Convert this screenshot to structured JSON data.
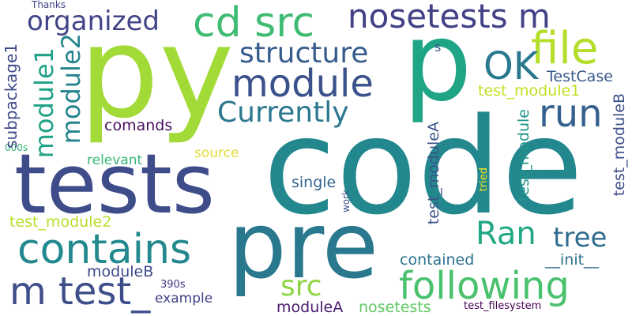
{
  "words": [
    {
      "text": "code",
      "color": "#23888e"
    },
    {
      "text": "py",
      "color": "#a2da37"
    },
    {
      "text": "p",
      "color": "#20a486"
    },
    {
      "text": "tests",
      "color": "#3e4c8a"
    },
    {
      "text": "pre",
      "color": "#29788e"
    },
    {
      "text": "cd src",
      "color": "#3fbc73"
    },
    {
      "text": "nosetests m",
      "color": "#424086"
    },
    {
      "text": "organized",
      "color": "#414487"
    },
    {
      "text": "file",
      "color": "#b5de2b"
    },
    {
      "text": "structure",
      "color": "#365c8d"
    },
    {
      "text": "module",
      "color": "#3b518b"
    },
    {
      "text": "OK",
      "color": "#2a788e"
    },
    {
      "text": "run",
      "color": "#34618d"
    },
    {
      "text": "Currently",
      "color": "#2a778e"
    },
    {
      "text": "TestCase",
      "color": "#38588c"
    },
    {
      "text": "test_module1",
      "color": "#c2df23"
    },
    {
      "text": "comands",
      "color": "#470d60"
    },
    {
      "text": "s",
      "color": "#3b528b"
    },
    {
      "text": "relevant",
      "color": "#35b779"
    },
    {
      "text": "source",
      "color": "#e1dd37"
    },
    {
      "text": "single",
      "color": "#33638d"
    },
    {
      "text": "contains",
      "color": "#23898e"
    },
    {
      "text": "Ran",
      "color": "#22a884"
    },
    {
      "text": "tree",
      "color": "#2f6c8e"
    },
    {
      "text": "following",
      "color": "#4ac16d"
    },
    {
      "text": "m test_",
      "color": "#3d4e8a"
    },
    {
      "text": "src",
      "color": "#8ed645"
    },
    {
      "text": "test_module2",
      "color": "#b8de29"
    },
    {
      "text": "contained",
      "color": "#2c728e"
    },
    {
      "text": "__init__",
      "color": "#2d708e"
    },
    {
      "text": "moduleB",
      "color": "#3e4989"
    },
    {
      "text": "example",
      "color": "#424186"
    },
    {
      "text": "moduleA",
      "color": "#481a6c"
    },
    {
      "text": "nosetests",
      "color": "#5ec962"
    },
    {
      "text": "390s",
      "color": "#453581"
    },
    {
      "text": "test_filesystem",
      "color": "#440154"
    },
    {
      "text": "Thanks",
      "color": "#414487"
    },
    {
      "text": "000s",
      "color": "#35b779"
    },
    {
      "text": "subpackage1",
      "color": "#3e4a89"
    },
    {
      "text": "module1",
      "color": "#1fa187"
    },
    {
      "text": "module2",
      "color": "#25848e"
    },
    {
      "text": "test_moduleA",
      "color": "#3a538b"
    },
    {
      "text": "test_module",
      "color": "#1f958b"
    },
    {
      "text": "test_moduleB",
      "color": "#3c4f8a"
    },
    {
      "text": "tried",
      "color": "#f1e51d"
    },
    {
      "text": "work",
      "color": "#3b528b"
    }
  ]
}
